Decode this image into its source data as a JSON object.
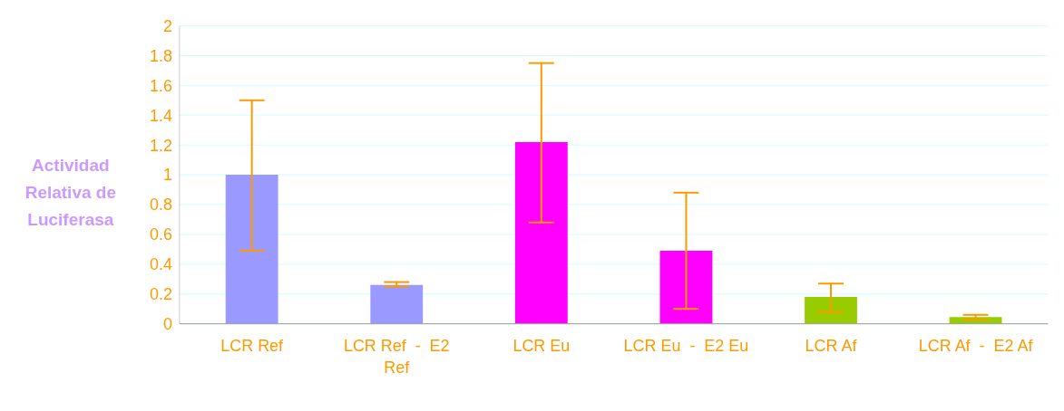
{
  "chart_data": {
    "type": "bar",
    "ylabel": "Actividad Relativa de Luciferasa",
    "categories": [
      "LCR Ref",
      "LCR Ref  -  E2 Ref",
      "LCR Eu",
      "LCR Eu  -  E2 Eu",
      "LCR Af",
      "LCR Af  -  E2 Af"
    ],
    "values": [
      1.0,
      0.26,
      1.22,
      0.49,
      0.18,
      0.045
    ],
    "colors": [
      "#9999ff",
      "#9999ff",
      "#ff00ff",
      "#ff00ff",
      "#99cc00",
      "#99cc00"
    ],
    "errors": [
      [
        0.49,
        1.5
      ],
      [
        0.25,
        0.28
      ],
      [
        0.68,
        1.75
      ],
      [
        0.1,
        0.88
      ],
      [
        0.08,
        0.27
      ],
      [
        0.03,
        0.06
      ]
    ],
    "ylim": [
      0,
      2
    ],
    "yticks": [
      0,
      0.2,
      0.4,
      0.6,
      0.8,
      1,
      1.2,
      1.4,
      1.6,
      1.8,
      2
    ],
    "grid": "y"
  }
}
